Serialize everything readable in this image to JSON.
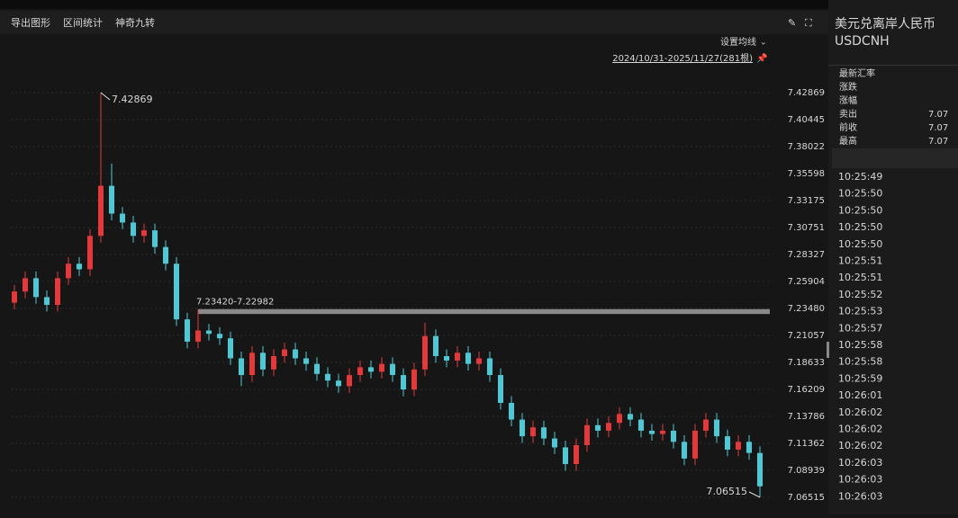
{
  "toolbar": [
    "导出图形",
    "区间统计",
    "神奇九转"
  ],
  "chart_data": {
    "type": "candlestick",
    "ma_setting": "设置均线",
    "range": "2024/10/31-2025/11/27(281根)",
    "colors": {
      "up": "#e5383b",
      "down": "#4cc9d4"
    },
    "grid": true,
    "ylim": [
      7.06515,
      7.42869
    ],
    "yticks": [
      7.42869,
      7.40445,
      7.38022,
      7.35598,
      7.33175,
      7.30751,
      7.28327,
      7.25904,
      {
        "value": 7.2348,
        "label": "7.23480"
      },
      7.21057,
      7.18633,
      7.16209,
      7.13786,
      7.11362,
      7.08939,
      7.06515
    ],
    "open": [
      7.24,
      7.25,
      7.262,
      7.245,
      7.238,
      7.262,
      7.275,
      7.27,
      7.3,
      7.345,
      7.32,
      7.312,
      7.3,
      7.305,
      7.29,
      7.275,
      7.225,
      7.205,
      7.215,
      7.212,
      7.208,
      7.19,
      7.175,
      7.195,
      7.18,
      7.192,
      7.198,
      7.19,
      7.185,
      7.176,
      7.17,
      7.165,
      7.175,
      7.182,
      7.178,
      7.185,
      7.175,
      7.162,
      7.18,
      7.21,
      7.192,
      7.188,
      7.195,
      7.185,
      7.19,
      7.175,
      7.15,
      7.135,
      7.12,
      7.128,
      7.118,
      7.11,
      7.095,
      7.112,
      7.13,
      7.125,
      7.132,
      7.14,
      7.135,
      7.125,
      7.122,
      7.125,
      7.115,
      7.1,
      7.125,
      7.135,
      7.12,
      7.108,
      7.115,
      7.105
    ],
    "close": [
      7.25,
      7.262,
      7.245,
      7.238,
      7.262,
      7.275,
      7.27,
      7.3,
      7.345,
      7.32,
      7.312,
      7.3,
      7.305,
      7.29,
      7.275,
      7.225,
      7.205,
      7.215,
      7.212,
      7.208,
      7.19,
      7.175,
      7.195,
      7.18,
      7.192,
      7.198,
      7.19,
      7.185,
      7.176,
      7.17,
      7.165,
      7.175,
      7.182,
      7.178,
      7.185,
      7.175,
      7.162,
      7.18,
      7.21,
      7.192,
      7.188,
      7.195,
      7.185,
      7.19,
      7.175,
      7.15,
      7.135,
      7.12,
      7.128,
      7.118,
      7.11,
      7.095,
      7.112,
      7.13,
      7.125,
      7.132,
      7.14,
      7.135,
      7.125,
      7.122,
      7.125,
      7.115,
      7.1,
      7.125,
      7.135,
      7.12,
      7.108,
      7.115,
      7.105,
      7.075
    ],
    "high": [
      7.256,
      7.268,
      7.268,
      7.251,
      7.268,
      7.281,
      7.281,
      7.306,
      7.42869,
      7.365,
      7.326,
      7.318,
      7.311,
      7.311,
      7.296,
      7.281,
      7.231,
      7.2342,
      7.221,
      7.218,
      7.214,
      7.196,
      7.201,
      7.201,
      7.198,
      7.204,
      7.204,
      7.196,
      7.191,
      7.182,
      7.176,
      7.181,
      7.188,
      7.188,
      7.191,
      7.191,
      7.181,
      7.186,
      7.222,
      7.216,
      7.198,
      7.201,
      7.201,
      7.196,
      7.196,
      7.181,
      7.156,
      7.141,
      7.134,
      7.134,
      7.124,
      7.116,
      7.118,
      7.136,
      7.136,
      7.138,
      7.146,
      7.146,
      7.141,
      7.131,
      7.131,
      7.131,
      7.121,
      7.131,
      7.141,
      7.141,
      7.126,
      7.121,
      7.121,
      7.111
    ],
    "low": [
      7.234,
      7.244,
      7.239,
      7.232,
      7.232,
      7.256,
      7.264,
      7.264,
      7.294,
      7.314,
      7.306,
      7.294,
      7.294,
      7.284,
      7.269,
      7.219,
      7.199,
      7.199,
      7.206,
      7.202,
      7.184,
      7.165,
      7.169,
      7.174,
      7.174,
      7.186,
      7.184,
      7.179,
      7.17,
      7.164,
      7.159,
      7.159,
      7.169,
      7.172,
      7.172,
      7.169,
      7.156,
      7.156,
      7.174,
      7.186,
      7.182,
      7.182,
      7.179,
      7.179,
      7.169,
      7.144,
      7.129,
      7.114,
      7.114,
      7.112,
      7.104,
      7.089,
      7.089,
      7.106,
      7.119,
      7.119,
      7.126,
      7.129,
      7.119,
      7.116,
      7.116,
      7.109,
      7.094,
      7.094,
      7.119,
      7.114,
      7.102,
      7.102,
      7.099,
      7.06515
    ],
    "range_band": {
      "label": "7.23420-7.22982",
      "values": [
        7.2342,
        7.22982
      ]
    }
  },
  "panel": {
    "title": "美元兑离岸人民币",
    "code": "USDCNH",
    "quote": [
      {
        "label": "最新汇率"
      },
      {
        "label": "涨跌"
      },
      {
        "label": "涨幅"
      },
      {
        "label": "卖出",
        "value": "7.07"
      },
      {
        "label": "前收",
        "value": "7.07"
      },
      {
        "label": "最高",
        "value": "7.07"
      }
    ],
    "times": [
      "10:25:49",
      "10:25:50",
      "10:25:50",
      "10:25:50",
      "10:25:50",
      "10:25:51",
      "10:25:51",
      "10:25:52",
      "10:25:53",
      "10:25:57",
      "10:25:58",
      "10:25:58",
      "10:25:59",
      "10:26:01",
      "10:26:02",
      "10:26:02",
      "10:26:02",
      "10:26:03",
      "10:26:03",
      "10:26:03"
    ]
  }
}
